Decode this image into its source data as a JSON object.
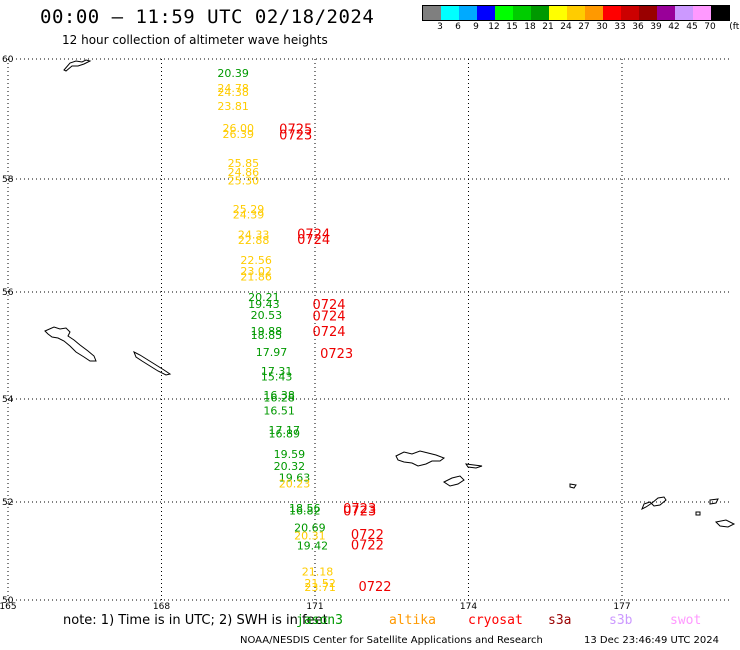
{
  "title": "00:00 – 11:59 UTC 02/18/2024",
  "subtitle": "12 hour collection of altimeter wave heights",
  "colorbar": {
    "colors": [
      "#7f7f7f",
      "#00ffff",
      "#00aaff",
      "#0000ff",
      "#00ff00",
      "#00cc00",
      "#009900",
      "#ffff00",
      "#ffcc00",
      "#ff9900",
      "#ff0000",
      "#cc0000",
      "#990000",
      "#990099",
      "#cc99ff",
      "#ff99ff",
      "#000000"
    ],
    "labels": [
      "3",
      "6",
      "9",
      "12",
      "15",
      "18",
      "21",
      "24",
      "27",
      "30",
      "33",
      "36",
      "39",
      "42",
      "45",
      "70",
      "(ft)"
    ]
  },
  "axes": {
    "lat_ticks": [
      "60",
      "58",
      "56",
      "54",
      "52",
      "50"
    ],
    "lon_ticks": [
      "165",
      "168",
      "171",
      "174",
      "177"
    ]
  },
  "observations": [
    {
      "lat": 59.7,
      "lon": 169.4,
      "v": "20.39",
      "color": "#009900"
    },
    {
      "lat": 59.45,
      "lon": 169.4,
      "v": "24.78",
      "color": "#ffcc00"
    },
    {
      "lat": 59.38,
      "lon": 169.4,
      "v": "24.38",
      "color": "#ffcc00"
    },
    {
      "lat": 59.15,
      "lon": 169.4,
      "v": "23.81",
      "color": "#ffcc00"
    },
    {
      "lat": 58.78,
      "lon": 169.5,
      "v": "26.00",
      "color": "#ffcc00"
    },
    {
      "lat": 58.68,
      "lon": 169.5,
      "v": "26.39",
      "color": "#ffcc00"
    },
    {
      "lat": 58.2,
      "lon": 169.6,
      "v": "25.85",
      "color": "#ffcc00"
    },
    {
      "lat": 58.05,
      "lon": 169.6,
      "v": "24.86",
      "color": "#ffcc00"
    },
    {
      "lat": 57.9,
      "lon": 169.6,
      "v": "25.30",
      "color": "#ffcc00"
    },
    {
      "lat": 57.4,
      "lon": 169.7,
      "v": "25.29",
      "color": "#ffcc00"
    },
    {
      "lat": 57.3,
      "lon": 169.7,
      "v": "24.39",
      "color": "#ffcc00"
    },
    {
      "lat": 56.95,
      "lon": 169.8,
      "v": "24.33",
      "color": "#ffcc00"
    },
    {
      "lat": 56.85,
      "lon": 169.8,
      "v": "22.88",
      "color": "#ffcc00"
    },
    {
      "lat": 56.5,
      "lon": 169.85,
      "v": "22.56",
      "color": "#ffcc00"
    },
    {
      "lat": 56.3,
      "lon": 169.85,
      "v": "23.02",
      "color": "#ffcc00"
    },
    {
      "lat": 56.2,
      "lon": 169.85,
      "v": "21.86",
      "color": "#ffcc00"
    },
    {
      "lat": 55.83,
      "lon": 170.0,
      "v": "20.21",
      "color": "#009900"
    },
    {
      "lat": 55.7,
      "lon": 170.0,
      "v": "19.43",
      "color": "#009900"
    },
    {
      "lat": 55.5,
      "lon": 170.05,
      "v": "20.53",
      "color": "#009900"
    },
    {
      "lat": 55.2,
      "lon": 170.05,
      "v": "19.88",
      "color": "#009900"
    },
    {
      "lat": 55.12,
      "lon": 170.05,
      "v": "18.85",
      "color": "#009900"
    },
    {
      "lat": 54.8,
      "lon": 170.15,
      "v": "17.97",
      "color": "#009900"
    },
    {
      "lat": 54.45,
      "lon": 170.25,
      "v": "17.31",
      "color": "#009900"
    },
    {
      "lat": 54.35,
      "lon": 170.25,
      "v": "15.43",
      "color": "#009900"
    },
    {
      "lat": 54.0,
      "lon": 170.3,
      "v": "16.38",
      "color": "#009900"
    },
    {
      "lat": 53.95,
      "lon": 170.3,
      "v": "16.28",
      "color": "#009900"
    },
    {
      "lat": 53.7,
      "lon": 170.3,
      "v": "16.51",
      "color": "#009900"
    },
    {
      "lat": 53.32,
      "lon": 170.4,
      "v": "17.17",
      "color": "#009900"
    },
    {
      "lat": 53.25,
      "lon": 170.4,
      "v": "16.89",
      "color": "#009900"
    },
    {
      "lat": 52.85,
      "lon": 170.5,
      "v": "19.59",
      "color": "#009900"
    },
    {
      "lat": 52.62,
      "lon": 170.5,
      "v": "20.32",
      "color": "#009900"
    },
    {
      "lat": 52.4,
      "lon": 170.6,
      "v": "19.63",
      "color": "#009900"
    },
    {
      "lat": 52.28,
      "lon": 170.6,
      "v": "20.23",
      "color": "#ffcc00"
    },
    {
      "lat": 51.8,
      "lon": 170.8,
      "v": "18.56",
      "color": "#009900"
    },
    {
      "lat": 51.74,
      "lon": 170.8,
      "v": "16.82",
      "color": "#009900"
    },
    {
      "lat": 51.4,
      "lon": 170.9,
      "v": "20.69",
      "color": "#009900"
    },
    {
      "lat": 51.23,
      "lon": 170.9,
      "v": "20.31",
      "color": "#ffcc00"
    },
    {
      "lat": 51.03,
      "lon": 170.95,
      "v": "19.42",
      "color": "#009900"
    },
    {
      "lat": 50.5,
      "lon": 171.05,
      "v": "21.18",
      "color": "#ffcc00"
    },
    {
      "lat": 50.27,
      "lon": 171.1,
      "v": "21.52",
      "color": "#ffcc00"
    },
    {
      "lat": 50.18,
      "lon": 171.1,
      "v": "23.71",
      "color": "#ffcc00"
    }
  ],
  "pass_times": [
    {
      "lat": 58.76,
      "lon": 170.3,
      "text": "0725"
    },
    {
      "lat": 58.66,
      "lon": 170.3,
      "text": "0723"
    },
    {
      "lat": 56.95,
      "lon": 170.65,
      "text": "0724"
    },
    {
      "lat": 56.85,
      "lon": 170.65,
      "text": "0724"
    },
    {
      "lat": 55.68,
      "lon": 170.95,
      "text": "0724"
    },
    {
      "lat": 55.47,
      "lon": 170.95,
      "text": "0724"
    },
    {
      "lat": 55.18,
      "lon": 170.95,
      "text": "0724"
    },
    {
      "lat": 54.77,
      "lon": 171.1,
      "text": "0723"
    },
    {
      "lat": 51.78,
      "lon": 171.55,
      "text": "0723"
    },
    {
      "lat": 51.72,
      "lon": 171.55,
      "text": "0723"
    },
    {
      "lat": 51.24,
      "lon": 171.7,
      "text": "0722"
    },
    {
      "lat": 51.03,
      "lon": 171.7,
      "text": "0722"
    },
    {
      "lat": 50.18,
      "lon": 171.85,
      "text": "0722"
    }
  ],
  "note": "note: 1) Time is in UTC; 2) SWH is in feet",
  "satellites": [
    {
      "name": "jason3",
      "color": "#009900"
    },
    {
      "name": "altika",
      "color": "#ff9900"
    },
    {
      "name": "cryosat",
      "color": "#ff0000"
    },
    {
      "name": "s3a",
      "color": "#990000"
    },
    {
      "name": "s3b",
      "color": "#cc99ff"
    },
    {
      "name": "swot",
      "color": "#ff99ff"
    }
  ],
  "footer": "NOAA/NESDIS Center for Satellite Applications and Research",
  "footer_time": "13 Dec 23:46:49 UTC 2024"
}
